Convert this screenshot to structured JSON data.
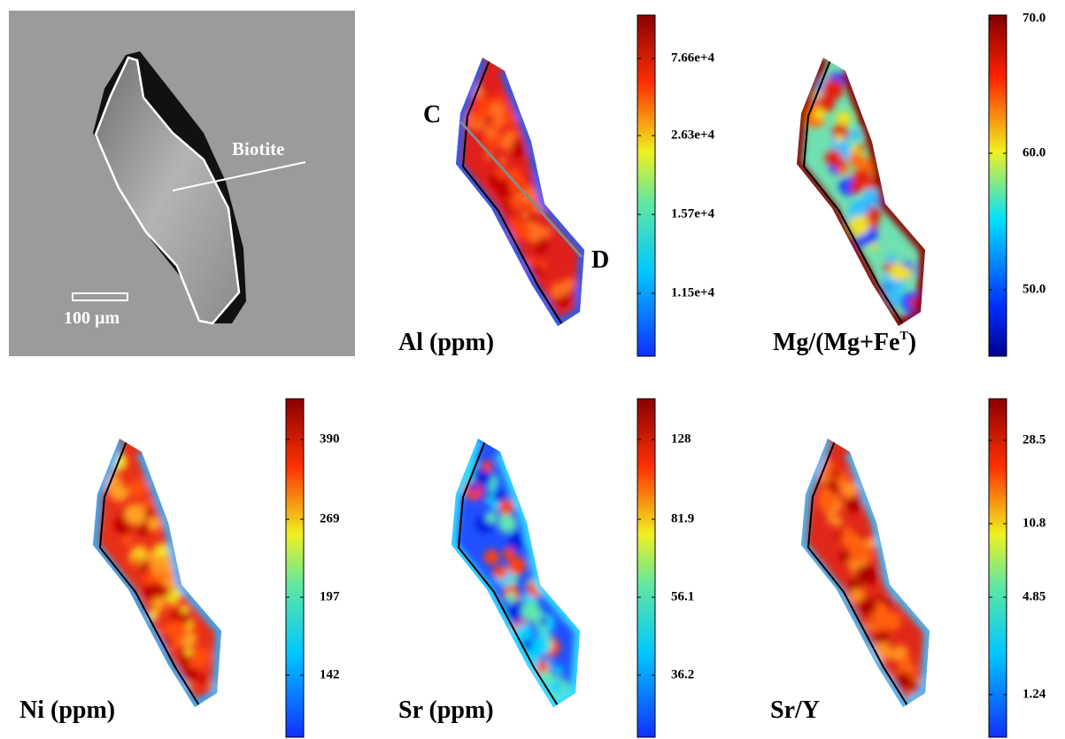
{
  "bse": {
    "mineral": "Biotite",
    "scale_bar": "100 µm"
  },
  "maps": [
    {
      "label": "Al (ppm)",
      "profile_start": "C",
      "profile_end": "D",
      "colorbar_ticks": [
        "7.66e+4",
        "2.63e+4",
        "1.57e+4",
        "1.15e+4"
      ]
    },
    {
      "label": "Mg/(Mg+Fe",
      "label_sup": "T",
      "label_close": ")",
      "colorbar_ticks": [
        "70.0",
        "60.0",
        "50.0"
      ]
    },
    {
      "label": "Ni (ppm)",
      "colorbar_ticks": [
        "390",
        "269",
        "197",
        "142"
      ]
    },
    {
      "label": "Sr (ppm)",
      "colorbar_ticks": [
        "128",
        "81.9",
        "56.1",
        "36.2"
      ]
    },
    {
      "label": "Sr/Y",
      "colorbar_ticks": [
        "28.5",
        "10.8",
        "4.85",
        "1.24"
      ]
    }
  ]
}
